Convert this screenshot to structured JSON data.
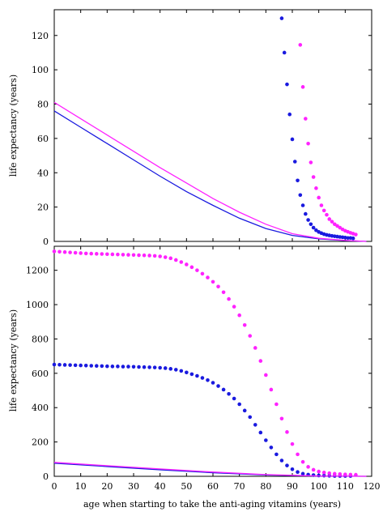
{
  "colors": {
    "blue": "#1a1adf",
    "magenta": "#ff22ff",
    "axis": "#000000"
  },
  "chart_data": [
    {
      "type": "scatter",
      "panel": "top",
      "title": "",
      "xlabel": "",
      "ylabel": "life expectancy (years)",
      "xlim": [
        0,
        120
      ],
      "ylim": [
        0,
        135
      ],
      "yticks": [
        0,
        20,
        40,
        60,
        80,
        100,
        120
      ],
      "x_tick_labels_shown": false,
      "grid": false,
      "series": [
        {
          "color_key": "blue",
          "style": "line",
          "points": [
            [
              0,
              76
            ],
            [
              10,
              66.5
            ],
            [
              20,
              57
            ],
            [
              30,
              47.5
            ],
            [
              40,
              38
            ],
            [
              50,
              29
            ],
            [
              60,
              21
            ],
            [
              70,
              13.5
            ],
            [
              80,
              7.5
            ],
            [
              90,
              3.5
            ],
            [
              100,
              1.5
            ],
            [
              110,
              0.5
            ],
            [
              118,
              0
            ]
          ]
        },
        {
          "color_key": "magenta",
          "style": "line",
          "points": [
            [
              0,
              81
            ],
            [
              10,
              71.5
            ],
            [
              20,
              62
            ],
            [
              30,
              52.5
            ],
            [
              40,
              43
            ],
            [
              50,
              34
            ],
            [
              60,
              25
            ],
            [
              70,
              17
            ],
            [
              80,
              10
            ],
            [
              90,
              4.5
            ],
            [
              100,
              1.8
            ],
            [
              110,
              0.6
            ],
            [
              118,
              0
            ]
          ]
        },
        {
          "color_key": "blue",
          "style": "dots",
          "points": [
            [
              86,
              130
            ],
            [
              87,
              110
            ],
            [
              88,
              91.5
            ],
            [
              89,
              74
            ],
            [
              90,
              59.5
            ],
            [
              91,
              46.5
            ],
            [
              92,
              35.5
            ],
            [
              93,
              27
            ],
            [
              94,
              21
            ],
            [
              95,
              16
            ],
            [
              96,
              12.5
            ],
            [
              97,
              10
            ],
            [
              98,
              8
            ],
            [
              99,
              6.5
            ],
            [
              100,
              5.5
            ],
            [
              101,
              4.8
            ],
            [
              102,
              4.2
            ],
            [
              103,
              3.8
            ],
            [
              104,
              3.5
            ],
            [
              105,
              3.2
            ],
            [
              106,
              3.0
            ],
            [
              107,
              2.8
            ],
            [
              108,
              2.6
            ],
            [
              109,
              2.4
            ],
            [
              110,
              2.2
            ],
            [
              111,
              2.0
            ],
            [
              112,
              2.0
            ],
            [
              113,
              1.8
            ]
          ]
        },
        {
          "color_key": "magenta",
          "style": "dots",
          "points": [
            [
              93,
              114.5
            ],
            [
              94,
              90
            ],
            [
              95,
              71.5
            ],
            [
              96,
              57
            ],
            [
              97,
              46
            ],
            [
              98,
              37.5
            ],
            [
              99,
              31
            ],
            [
              100,
              25.5
            ],
            [
              101,
              21
            ],
            [
              102,
              18
            ],
            [
              103,
              15.5
            ],
            [
              104,
              13
            ],
            [
              105,
              11.5
            ],
            [
              106,
              10
            ],
            [
              107,
              9
            ],
            [
              108,
              8
            ],
            [
              109,
              7
            ],
            [
              110,
              6.2
            ],
            [
              111,
              5.6
            ],
            [
              112,
              5
            ],
            [
              113,
              4.5
            ],
            [
              114,
              4.0
            ]
          ]
        }
      ]
    },
    {
      "type": "scatter",
      "panel": "bottom",
      "title": "",
      "xlabel": "age when starting to take the anti-aging vitamins (years)",
      "ylabel": "life expectancy (years)",
      "xlim": [
        0,
        120
      ],
      "ylim": [
        0,
        1340
      ],
      "xticks": [
        0,
        10,
        20,
        30,
        40,
        50,
        60,
        70,
        80,
        90,
        100,
        110,
        120
      ],
      "yticks": [
        0,
        200,
        400,
        600,
        800,
        1000,
        1200
      ],
      "grid": false,
      "series": [
        {
          "color_key": "blue",
          "style": "dots",
          "points": [
            [
              0,
              651
            ],
            [
              2,
              650
            ],
            [
              4,
              649
            ],
            [
              6,
              648
            ],
            [
              8,
              647
            ],
            [
              10,
              646
            ],
            [
              12,
              645
            ],
            [
              14,
              644
            ],
            [
              16,
              643
            ],
            [
              18,
              642
            ],
            [
              20,
              641
            ],
            [
              22,
              640
            ],
            [
              24,
              640
            ],
            [
              26,
              639
            ],
            [
              28,
              639
            ],
            [
              30,
              638
            ],
            [
              32,
              637
            ],
            [
              34,
              636
            ],
            [
              36,
              635
            ],
            [
              38,
              634
            ],
            [
              40,
              632
            ],
            [
              42,
              630
            ],
            [
              44,
              626
            ],
            [
              46,
              621
            ],
            [
              48,
              614
            ],
            [
              50,
              605
            ],
            [
              52,
              595
            ],
            [
              54,
              585
            ],
            [
              56,
              573
            ],
            [
              58,
              560
            ],
            [
              60,
              545
            ],
            [
              62,
              526
            ],
            [
              64,
              505
            ],
            [
              66,
              480
            ],
            [
              68,
              453
            ],
            [
              70,
              420
            ],
            [
              72,
              383
            ],
            [
              74,
              345
            ],
            [
              76,
              300
            ],
            [
              78,
              255
            ],
            [
              80,
              210
            ],
            [
              82,
              168
            ],
            [
              84,
              128
            ],
            [
              86,
              92
            ],
            [
              88,
              63
            ],
            [
              90,
              41
            ],
            [
              92,
              25
            ],
            [
              94,
              15
            ],
            [
              96,
              10
            ],
            [
              98,
              7
            ],
            [
              100,
              5
            ],
            [
              102,
              4
            ],
            [
              104,
              3
            ],
            [
              106,
              2
            ],
            [
              108,
              2
            ],
            [
              110,
              2
            ],
            [
              112,
              2
            ]
          ]
        },
        {
          "color_key": "magenta",
          "style": "dots",
          "points": [
            [
              0,
              1310
            ],
            [
              2,
              1308
            ],
            [
              4,
              1306
            ],
            [
              6,
              1304
            ],
            [
              8,
              1302
            ],
            [
              10,
              1300
            ],
            [
              12,
              1298
            ],
            [
              14,
              1297
            ],
            [
              16,
              1296
            ],
            [
              18,
              1295
            ],
            [
              20,
              1294
            ],
            [
              22,
              1293
            ],
            [
              24,
              1292
            ],
            [
              26,
              1291
            ],
            [
              28,
              1290
            ],
            [
              30,
              1289
            ],
            [
              32,
              1288
            ],
            [
              34,
              1287
            ],
            [
              36,
              1286
            ],
            [
              38,
              1284
            ],
            [
              40,
              1281
            ],
            [
              42,
              1276
            ],
            [
              44,
              1270
            ],
            [
              46,
              1260
            ],
            [
              48,
              1248
            ],
            [
              50,
              1234
            ],
            [
              52,
              1218
            ],
            [
              54,
              1200
            ],
            [
              56,
              1180
            ],
            [
              58,
              1158
            ],
            [
              60,
              1133
            ],
            [
              62,
              1105
            ],
            [
              64,
              1072
            ],
            [
              66,
              1033
            ],
            [
              68,
              988
            ],
            [
              70,
              938
            ],
            [
              72,
              881
            ],
            [
              74,
              818
            ],
            [
              76,
              748
            ],
            [
              78,
              672
            ],
            [
              80,
              590
            ],
            [
              82,
              505
            ],
            [
              84,
              420
            ],
            [
              86,
              336
            ],
            [
              88,
              258
            ],
            [
              90,
              188
            ],
            [
              92,
              128
            ],
            [
              94,
              84
            ],
            [
              96,
              55
            ],
            [
              98,
              38
            ],
            [
              100,
              28
            ],
            [
              102,
              22
            ],
            [
              104,
              18
            ],
            [
              106,
              15
            ],
            [
              108,
              13
            ],
            [
              110,
              11
            ],
            [
              112,
              10
            ],
            [
              114,
              9
            ]
          ]
        },
        {
          "color_key": "blue",
          "style": "line",
          "points": [
            [
              0,
              76
            ],
            [
              20,
              57
            ],
            [
              40,
              38
            ],
            [
              60,
              21
            ],
            [
              80,
              7.5
            ],
            [
              100,
              1.5
            ],
            [
              118,
              0
            ]
          ]
        },
        {
          "color_key": "magenta",
          "style": "line",
          "points": [
            [
              0,
              81
            ],
            [
              20,
              62
            ],
            [
              40,
              43
            ],
            [
              60,
              25
            ],
            [
              80,
              10
            ],
            [
              100,
              1.8
            ],
            [
              118,
              0
            ]
          ]
        }
      ]
    }
  ]
}
